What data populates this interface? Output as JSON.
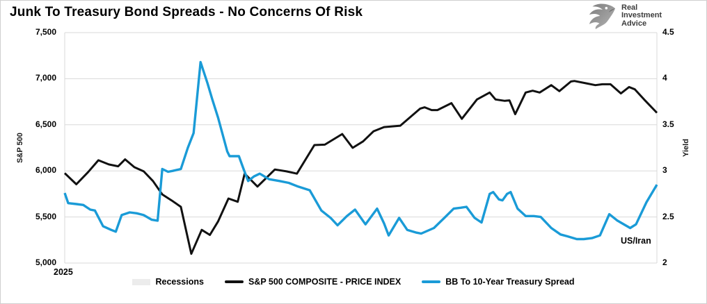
{
  "title": "Junk To Treasury Bond Spreads - No Concerns Of Risk",
  "logo": {
    "line1": "Real",
    "line2": "Investment",
    "line3": "Advice"
  },
  "legend": [
    {
      "label": "Recessions",
      "type": "box",
      "color": "#ececec"
    },
    {
      "label": "S&P 500 COMPOSITE - PRICE INDEX",
      "type": "line",
      "color": "#111111"
    },
    {
      "label": "BB To 10-Year Treasury Spread",
      "type": "line",
      "color": "#1a9bd7"
    }
  ],
  "chart_data": {
    "type": "line",
    "title": "Junk To Treasury Bond Spreads - No Concerns Of Risk",
    "x_axis": {
      "label": "2025",
      "note": "weekly data, Jan-Dec 2025, week index 0-51",
      "range": [
        0,
        51
      ]
    },
    "left_axis": {
      "label": "S&P 500",
      "min": 5000,
      "max": 7500,
      "ticks": [
        "7,500",
        "7,000",
        "6,500",
        "6,000",
        "5,500",
        "5,000"
      ]
    },
    "right_axis": {
      "label": "Yield",
      "min": 2,
      "max": 4.5,
      "ticks": [
        "4.5",
        "4",
        "3.5",
        "3",
        "2.5",
        "2"
      ]
    },
    "annotation": "US/Iran",
    "grid": "horizontal",
    "legend_position": "bottom",
    "series": [
      {
        "name": "S&P 500 COMPOSITE - PRICE INDEX",
        "axis": "left",
        "color": "#111111",
        "width": 3,
        "points": [
          [
            0,
            5975
          ],
          [
            1,
            5855
          ],
          [
            2,
            5985
          ],
          [
            2.9,
            6115
          ],
          [
            3.8,
            6070
          ],
          [
            4.6,
            6050
          ],
          [
            5.2,
            6125
          ],
          [
            6,
            6040
          ],
          [
            6.8,
            5995
          ],
          [
            7.6,
            5890
          ],
          [
            8.4,
            5745
          ],
          [
            9.2,
            5680
          ],
          [
            10,
            5610
          ],
          [
            10.9,
            5100
          ],
          [
            11.8,
            5360
          ],
          [
            12.5,
            5305
          ],
          [
            13.2,
            5450
          ],
          [
            14.1,
            5700
          ],
          [
            14.9,
            5665
          ],
          [
            15.5,
            5970
          ],
          [
            16.6,
            5830
          ],
          [
            18.1,
            6015
          ],
          [
            19.1,
            5995
          ],
          [
            20,
            5970
          ],
          [
            21.5,
            6280
          ],
          [
            22.4,
            6285
          ],
          [
            23.9,
            6400
          ],
          [
            24.8,
            6250
          ],
          [
            25.7,
            6320
          ],
          [
            26.6,
            6430
          ],
          [
            27.5,
            6475
          ],
          [
            28.9,
            6490
          ],
          [
            30.6,
            6675
          ],
          [
            31,
            6690
          ],
          [
            31.6,
            6660
          ],
          [
            32.1,
            6660
          ],
          [
            33.3,
            6735
          ],
          [
            34.2,
            6565
          ],
          [
            35.5,
            6775
          ],
          [
            36.6,
            6850
          ],
          [
            37.1,
            6775
          ],
          [
            37.9,
            6760
          ],
          [
            38.3,
            6765
          ],
          [
            38.8,
            6615
          ],
          [
            39.7,
            6850
          ],
          [
            40.3,
            6870
          ],
          [
            40.9,
            6850
          ],
          [
            41.9,
            6930
          ],
          [
            42.6,
            6865
          ],
          [
            43.6,
            6970
          ],
          [
            43.9,
            6975
          ],
          [
            44.9,
            6950
          ],
          [
            45.7,
            6930
          ],
          [
            46.3,
            6940
          ],
          [
            47,
            6940
          ],
          [
            47.9,
            6840
          ],
          [
            48.6,
            6910
          ],
          [
            49.1,
            6885
          ],
          [
            49.9,
            6775
          ],
          [
            51,
            6630
          ]
        ]
      },
      {
        "name": "BB To 10-Year Treasury Spread",
        "axis": "right",
        "color": "#1a9bd7",
        "width": 3.4,
        "points": [
          [
            0,
            2.76
          ],
          [
            0.3,
            2.65
          ],
          [
            1,
            2.64
          ],
          [
            1.6,
            2.63
          ],
          [
            2.2,
            2.58
          ],
          [
            2.6,
            2.57
          ],
          [
            3.3,
            2.4
          ],
          [
            4,
            2.36
          ],
          [
            4.4,
            2.34
          ],
          [
            4.9,
            2.52
          ],
          [
            5.6,
            2.55
          ],
          [
            6.2,
            2.54
          ],
          [
            6.8,
            2.52
          ],
          [
            7.5,
            2.47
          ],
          [
            8,
            2.46
          ],
          [
            8.4,
            3.02
          ],
          [
            8.9,
            2.99
          ],
          [
            9.3,
            3.0
          ],
          [
            10,
            3.02
          ],
          [
            10.6,
            3.25
          ],
          [
            11.1,
            3.41
          ],
          [
            11.7,
            4.18
          ],
          [
            12.3,
            3.95
          ],
          [
            12.7,
            3.78
          ],
          [
            13.2,
            3.58
          ],
          [
            14,
            3.21
          ],
          [
            14.2,
            3.16
          ],
          [
            15,
            3.16
          ],
          [
            15.4,
            3.02
          ],
          [
            15.8,
            2.89
          ],
          [
            16.3,
            2.94
          ],
          [
            16.8,
            2.97
          ],
          [
            17.6,
            2.91
          ],
          [
            18.5,
            2.89
          ],
          [
            19.3,
            2.87
          ],
          [
            20.1,
            2.83
          ],
          [
            21.1,
            2.79
          ],
          [
            22.1,
            2.57
          ],
          [
            22.9,
            2.49
          ],
          [
            23.5,
            2.41
          ],
          [
            24.3,
            2.51
          ],
          [
            25,
            2.58
          ],
          [
            25.9,
            2.42
          ],
          [
            26.9,
            2.59
          ],
          [
            27.5,
            2.43
          ],
          [
            27.9,
            2.3
          ],
          [
            28.8,
            2.49
          ],
          [
            29.5,
            2.36
          ],
          [
            30.3,
            2.33
          ],
          [
            30.7,
            2.32
          ],
          [
            31.8,
            2.38
          ],
          [
            32.7,
            2.49
          ],
          [
            33.5,
            2.59
          ],
          [
            34.1,
            2.6
          ],
          [
            34.6,
            2.61
          ],
          [
            35.3,
            2.49
          ],
          [
            35.9,
            2.44
          ],
          [
            36.6,
            2.75
          ],
          [
            36.9,
            2.77
          ],
          [
            37.4,
            2.69
          ],
          [
            37.7,
            2.68
          ],
          [
            38.1,
            2.75
          ],
          [
            38.4,
            2.77
          ],
          [
            39,
            2.59
          ],
          [
            39.7,
            2.51
          ],
          [
            40.4,
            2.51
          ],
          [
            41,
            2.5
          ],
          [
            41.9,
            2.38
          ],
          [
            42.7,
            2.31
          ],
          [
            43.3,
            2.29
          ],
          [
            44.1,
            2.26
          ],
          [
            44.7,
            2.26
          ],
          [
            45.4,
            2.27
          ],
          [
            46.1,
            2.3
          ],
          [
            46.9,
            2.53
          ],
          [
            47.6,
            2.46
          ],
          [
            48.3,
            2.41
          ],
          [
            48.7,
            2.38
          ],
          [
            49.2,
            2.42
          ],
          [
            50.1,
            2.66
          ],
          [
            51,
            2.85
          ]
        ]
      }
    ]
  }
}
